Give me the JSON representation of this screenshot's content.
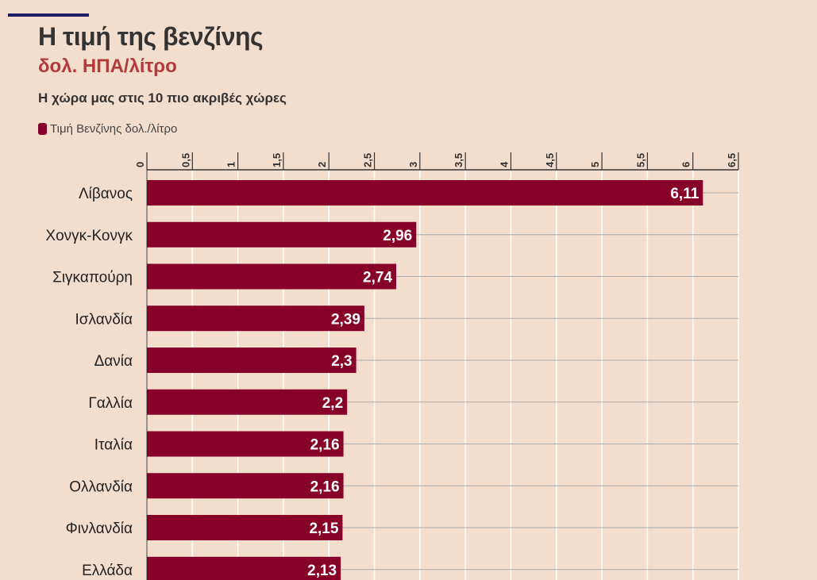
{
  "title": "Η τιμή της βενζίνης",
  "subtitle": "δολ. ΗΠΑ/λίτρο",
  "caption": "Η χώρα μας στις 10 πιο ακριβές χώρες",
  "colors": {
    "bar": "#870029",
    "background": "#f3decd",
    "title": "#333333",
    "subtitle": "#b23a3a",
    "accent": "#1c1c6b"
  },
  "chart_data": {
    "type": "bar",
    "orientation": "horizontal",
    "categories": [
      "Λίβανος",
      "Χονγκ-Κονγκ",
      "Σιγκαπούρη",
      "Ισλανδία",
      "Δανία",
      "Γαλλία",
      "Ιταλία",
      "Ολλανδία",
      "Φινλανδία",
      "Ελλάδα"
    ],
    "series": [
      {
        "name": "Τιμή Βενζίνης δολ./λίτρο",
        "values": [
          6.11,
          2.96,
          2.74,
          2.39,
          2.3,
          2.2,
          2.16,
          2.16,
          2.15,
          2.13
        ]
      }
    ],
    "value_labels": [
      "6,11",
      "2,96",
      "2,74",
      "2,39",
      "2,3",
      "2,2",
      "2,16",
      "2,16",
      "2,15",
      "2,13"
    ],
    "xlim": [
      0,
      6.5
    ],
    "ticks": [
      "0",
      "0,5",
      "1",
      "1,5",
      "2",
      "2,5",
      "3",
      "3,5",
      "4",
      "4,5",
      "5",
      "5,5",
      "6",
      "6,5"
    ],
    "axis_position": "top",
    "legend_position": "top-left",
    "grid": true
  }
}
